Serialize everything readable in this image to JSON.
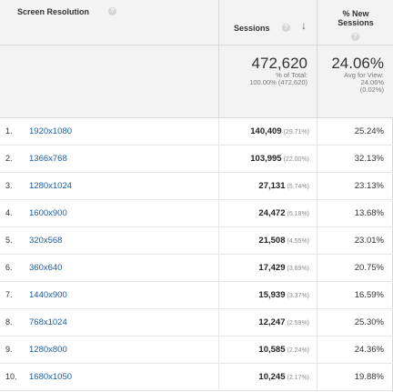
{
  "header": {
    "dimension_label": "Screen Resolution",
    "sessions_label": "Sessions",
    "new_sessions_label_line1": "% New",
    "new_sessions_label_line2": "Sessions",
    "help_glyph": "?",
    "sort_glyph": "↓"
  },
  "totals": {
    "sessions_value": "472,620",
    "sessions_sub1": "% of Total:",
    "sessions_sub2": "100.00% (472,620)",
    "new_value": "24.06%",
    "new_sub1": "Avg for View:",
    "new_sub2": "24.06%",
    "new_sub3": "(0.02%)"
  },
  "rows": [
    {
      "index": "1.",
      "resolution": "1920x1080",
      "sessions": "140,409",
      "share": "(29.71%)",
      "new_pct": "25.24%"
    },
    {
      "index": "2.",
      "resolution": "1366x768",
      "sessions": "103,995",
      "share": "(22.00%)",
      "new_pct": "32.13%"
    },
    {
      "index": "3.",
      "resolution": "1280x1024",
      "sessions": "27,131",
      "share": "(5.74%)",
      "new_pct": "23.13%"
    },
    {
      "index": "4.",
      "resolution": "1600x900",
      "sessions": "24,472",
      "share": "(5.18%)",
      "new_pct": "13.68%"
    },
    {
      "index": "5.",
      "resolution": "320x568",
      "sessions": "21,508",
      "share": "(4.55%)",
      "new_pct": "23.01%"
    },
    {
      "index": "6.",
      "resolution": "360x640",
      "sessions": "17,429",
      "share": "(3.69%)",
      "new_pct": "20.75%"
    },
    {
      "index": "7.",
      "resolution": "1440x900",
      "sessions": "15,939",
      "share": "(3.37%)",
      "new_pct": "16.59%"
    },
    {
      "index": "8.",
      "resolution": "768x1024",
      "sessions": "12,247",
      "share": "(2.59%)",
      "new_pct": "25.30%"
    },
    {
      "index": "9.",
      "resolution": "1280x800",
      "sessions": "10,585",
      "share": "(2.24%)",
      "new_pct": "24.36%"
    },
    {
      "index": "10.",
      "resolution": "1680x1050",
      "sessions": "10,245",
      "share": "(2.17%)",
      "new_pct": "19.88%"
    }
  ]
}
